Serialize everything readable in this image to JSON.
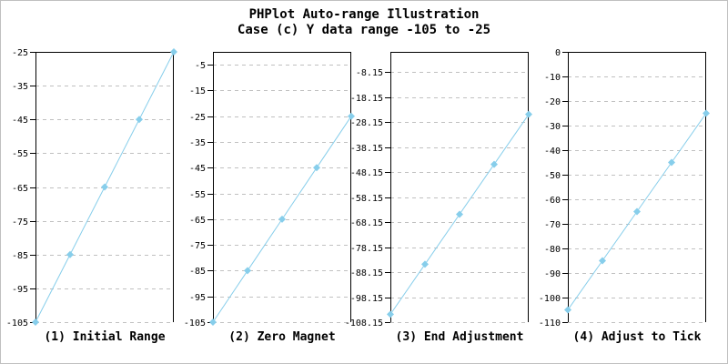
{
  "title": {
    "line1": "PHPlot Auto-range Illustration",
    "line2": "Case (c) Y data range -105 to -25"
  },
  "colors": {
    "data_line": "#87CEEB",
    "marker": "#87CEEB",
    "grid": "#c0c0c0",
    "axis": "#000000",
    "frame_border": "#c0c0c0",
    "background": "#ffffff",
    "text": "#000000"
  },
  "chart_data": [
    {
      "type": "line",
      "caption": "(1) Initial Range",
      "marker": "diamond",
      "x": [
        1,
        2,
        3,
        4,
        5
      ],
      "y": [
        -105,
        -85,
        -65,
        -45,
        -25
      ],
      "ylim": [
        -105,
        -25
      ],
      "grid": "horizontal-dashed",
      "yticks": [
        {
          "value": -25,
          "label": "-25"
        },
        {
          "value": -35,
          "label": "-35"
        },
        {
          "value": -45,
          "label": "-45"
        },
        {
          "value": -55,
          "label": "-55"
        },
        {
          "value": -65,
          "label": "-65"
        },
        {
          "value": -75,
          "label": "-75"
        },
        {
          "value": -85,
          "label": "-85"
        },
        {
          "value": -95,
          "label": "-95"
        },
        {
          "value": -105,
          "label": "-105"
        }
      ]
    },
    {
      "type": "line",
      "caption": "(2) Zero Magnet",
      "marker": "diamond",
      "x": [
        1,
        2,
        3,
        4,
        5
      ],
      "y": [
        -105,
        -85,
        -65,
        -45,
        -25
      ],
      "ylim": [
        -105,
        0
      ],
      "grid": "horizontal-dashed",
      "yticks": [
        {
          "value": -5,
          "label": "-5"
        },
        {
          "value": -15,
          "label": "-15"
        },
        {
          "value": -25,
          "label": "-25"
        },
        {
          "value": -35,
          "label": "-35"
        },
        {
          "value": -45,
          "label": "-45"
        },
        {
          "value": -55,
          "label": "-55"
        },
        {
          "value": -65,
          "label": "-65"
        },
        {
          "value": -75,
          "label": "-75"
        },
        {
          "value": -85,
          "label": "-85"
        },
        {
          "value": -95,
          "label": "-95"
        },
        {
          "value": -105,
          "label": "-105"
        }
      ]
    },
    {
      "type": "line",
      "caption": "(3) End Adjustment",
      "marker": "diamond",
      "x": [
        1,
        2,
        3,
        4,
        5
      ],
      "y": [
        -105,
        -85,
        -65,
        -45,
        -25
      ],
      "ylim": [
        -108.15,
        0
      ],
      "grid": "horizontal-dashed",
      "yticks": [
        {
          "value": -8.15,
          "label": "-8.15"
        },
        {
          "value": -18.15,
          "label": "-18.15"
        },
        {
          "value": -28.15,
          "label": "-28.15"
        },
        {
          "value": -38.15,
          "label": "-38.15"
        },
        {
          "value": -48.15,
          "label": "-48.15"
        },
        {
          "value": -58.15,
          "label": "-58.15"
        },
        {
          "value": -68.15,
          "label": "-68.15"
        },
        {
          "value": -78.15,
          "label": "-78.15"
        },
        {
          "value": -88.15,
          "label": "-88.15"
        },
        {
          "value": -98.15,
          "label": "-98.15"
        },
        {
          "value": -108.15,
          "label": "-108.15"
        }
      ]
    },
    {
      "type": "line",
      "caption": "(4) Adjust to Tick",
      "marker": "diamond",
      "x": [
        1,
        2,
        3,
        4,
        5
      ],
      "y": [
        -105,
        -85,
        -65,
        -45,
        -25
      ],
      "ylim": [
        -110,
        0
      ],
      "grid": "horizontal-dashed",
      "yticks": [
        {
          "value": 0,
          "label": "0"
        },
        {
          "value": -10,
          "label": "-10"
        },
        {
          "value": -20,
          "label": "-20"
        },
        {
          "value": -30,
          "label": "-30"
        },
        {
          "value": -40,
          "label": "-40"
        },
        {
          "value": -50,
          "label": "-50"
        },
        {
          "value": -60,
          "label": "-60"
        },
        {
          "value": -70,
          "label": "-70"
        },
        {
          "value": -80,
          "label": "-80"
        },
        {
          "value": -90,
          "label": "-90"
        },
        {
          "value": -100,
          "label": "-100"
        },
        {
          "value": -110,
          "label": "-110"
        }
      ]
    }
  ]
}
